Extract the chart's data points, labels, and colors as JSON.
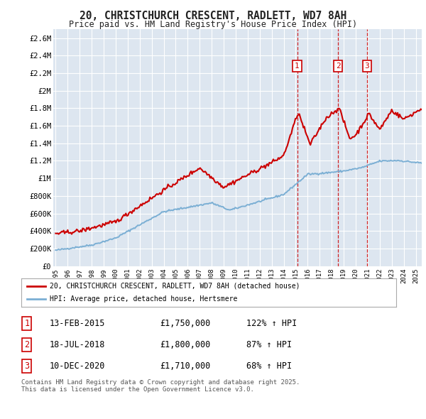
{
  "title_line1": "20, CHRISTCHURCH CRESCENT, RADLETT, WD7 8AH",
  "title_line2": "Price paid vs. HM Land Registry's House Price Index (HPI)",
  "legend_line1": "20, CHRISTCHURCH CRESCENT, RADLETT, WD7 8AH (detached house)",
  "legend_line2": "HPI: Average price, detached house, Hertsmere",
  "footer": "Contains HM Land Registry data © Crown copyright and database right 2025.\nThis data is licensed under the Open Government Licence v3.0.",
  "sale_color": "#cc0000",
  "hpi_color": "#7bafd4",
  "bg_color": "#dde6f0",
  "grid_color": "#ffffff",
  "transactions": [
    {
      "label": "1",
      "date": "13-FEB-2015",
      "price": "1,750,000",
      "pct": "122%",
      "dir": "↑",
      "x_year": 2015.12
    },
    {
      "label": "2",
      "date": "18-JUL-2018",
      "price": "1,800,000",
      "pct": "87%",
      "dir": "↑",
      "x_year": 2018.54
    },
    {
      "label": "3",
      "date": "10-DEC-2020",
      "price": "1,710,000",
      "pct": "68%",
      "dir": "↑",
      "x_year": 2020.95
    }
  ],
  "ylim": [
    0,
    2700000
  ],
  "xlim_start": 1994.8,
  "xlim_end": 2025.5,
  "yticks": [
    0,
    200000,
    400000,
    600000,
    800000,
    1000000,
    1200000,
    1400000,
    1600000,
    1800000,
    2000000,
    2200000,
    2400000,
    2600000
  ],
  "ytick_labels": [
    "£0",
    "£200K",
    "£400K",
    "£600K",
    "£800K",
    "£1M",
    "£1.2M",
    "£1.4M",
    "£1.6M",
    "£1.8M",
    "£2M",
    "£2.2M",
    "£2.4M",
    "£2.6M"
  ],
  "xticks": [
    1995,
    1996,
    1997,
    1998,
    1999,
    2000,
    2001,
    2002,
    2003,
    2004,
    2005,
    2006,
    2007,
    2008,
    2009,
    2010,
    2011,
    2012,
    2013,
    2014,
    2015,
    2016,
    2017,
    2018,
    2019,
    2020,
    2021,
    2022,
    2023,
    2024,
    2025
  ]
}
